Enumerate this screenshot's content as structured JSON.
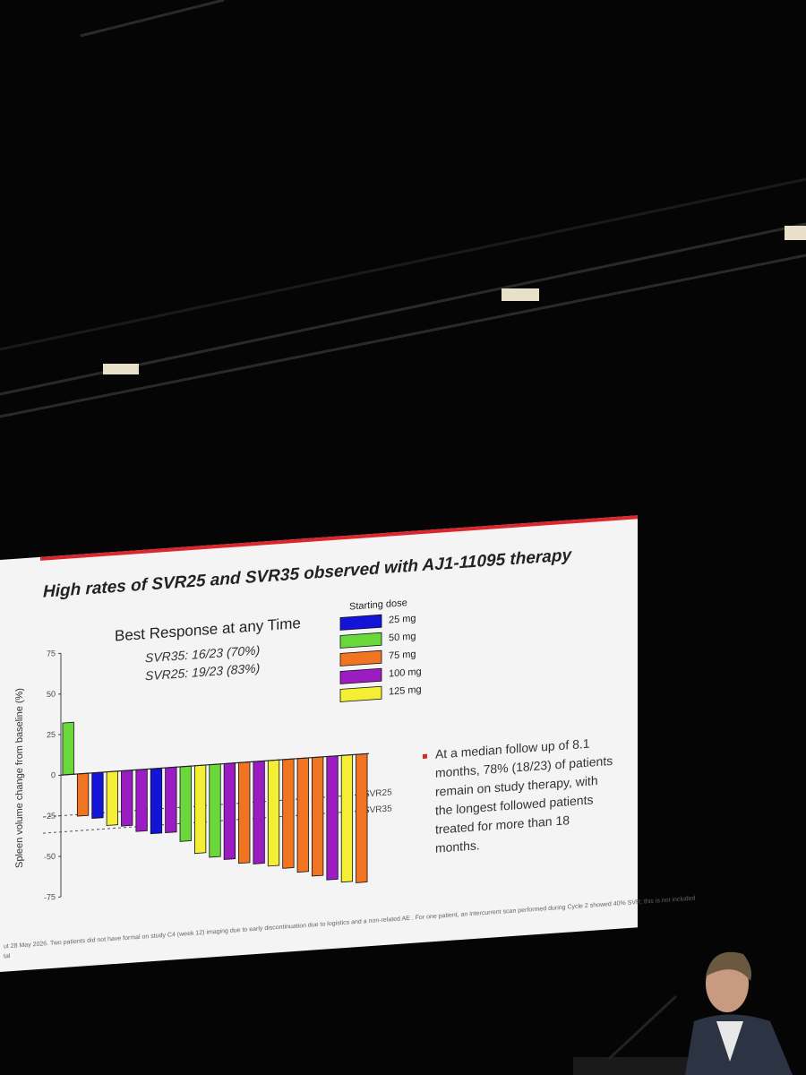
{
  "chart_data": {
    "type": "bar",
    "title": "High rates of SVR25 and SVR35 observed with AJ1-11095 therapy",
    "subtitle": "Best Response at any Time",
    "annotations": [
      "SVR35: 16/23 (70%)",
      "SVR25: 19/23 (83%)"
    ],
    "y_label": "Spleen volume change from baseline (%)",
    "legend_title": "Starting dose",
    "ylim": [
      -80,
      80
    ],
    "yticks": [
      75,
      50,
      25,
      0,
      -25,
      -50,
      -75
    ],
    "reference_lines": [
      {
        "value": -25,
        "label": "SVR25"
      },
      {
        "value": -35,
        "label": "SVR35"
      }
    ],
    "series": [
      {
        "name": "25 mg",
        "color": "#1414d8",
        "values": [
          null,
          null,
          -28,
          null,
          null,
          null,
          -40,
          null,
          null,
          null,
          null,
          null,
          null,
          null,
          null,
          null,
          null,
          null,
          null,
          null,
          null
        ]
      },
      {
        "name": "50 mg",
        "color": "#6ad83a",
        "values": [
          32,
          null,
          null,
          null,
          null,
          null,
          null,
          null,
          -46,
          null,
          -57,
          null,
          null,
          null,
          null,
          null,
          null,
          null,
          null,
          null,
          null
        ]
      },
      {
        "name": "75 mg",
        "color": "#f07422",
        "values": [
          null,
          -26,
          null,
          null,
          null,
          null,
          null,
          null,
          null,
          null,
          null,
          null,
          -62,
          null,
          null,
          -67,
          -70,
          -73,
          null,
          null,
          -79
        ]
      },
      {
        "name": "100 mg",
        "color": "#9a1cc2",
        "values": [
          null,
          null,
          null,
          null,
          -34,
          -38,
          null,
          -40,
          null,
          null,
          null,
          -59,
          null,
          -63,
          null,
          null,
          null,
          null,
          -76,
          null,
          null
        ]
      },
      {
        "name": "125 mg",
        "color": "#f4ee34",
        "values": [
          null,
          null,
          null,
          -33,
          null,
          null,
          null,
          null,
          null,
          -54,
          null,
          null,
          null,
          null,
          -65,
          null,
          null,
          null,
          null,
          -78,
          null
        ]
      }
    ]
  },
  "bullet_lines": [
    "At a median follow up of 8.1",
    "months, 78% (18/23) of patients",
    "remain on study therapy, with",
    "the longest followed patients",
    "treated for more than 18",
    "months."
  ],
  "footnote": [
    "ut 28 May 2026. Two patients did not have formal on study C4 (week 12) imaging due to early discontinuation due to logistics and a non-related AE . For one patient, an intercurrent scan performed during Cycle 2 showed 40% SVR; this is not included",
    "tal"
  ]
}
